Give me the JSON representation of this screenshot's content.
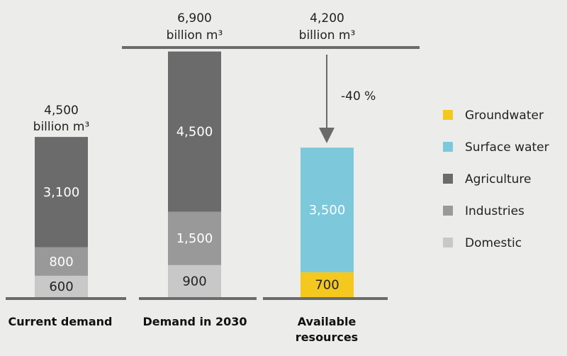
{
  "chart_data": {
    "type": "bar",
    "stacked": true,
    "categories": [
      [
        "Current demand"
      ],
      [
        "Demand in 2030"
      ],
      [
        "Available",
        "resources"
      ]
    ],
    "totals": [
      [
        "4,500",
        "billion m³"
      ],
      [
        "6,900",
        "billion m³"
      ],
      [
        "4,200",
        "billion m³"
      ]
    ],
    "segments": [
      [
        {
          "series": "Domestic",
          "value": 600,
          "label": "600"
        },
        {
          "series": "Industries",
          "value": 800,
          "label": "800"
        },
        {
          "series": "Agriculture",
          "value": 3100,
          "label": "3,100"
        }
      ],
      [
        {
          "series": "Domestic",
          "value": 900,
          "label": "900"
        },
        {
          "series": "Industries",
          "value": 1500,
          "label": "1,500"
        },
        {
          "series": "Agriculture",
          "value": 4500,
          "label": "4,500"
        }
      ],
      [
        {
          "series": "Groundwater",
          "value": 700,
          "label": "700"
        },
        {
          "series": "Surface water",
          "value": 3500,
          "label": "3,500"
        }
      ]
    ],
    "reduction_label": "-40 %",
    "legend": [
      {
        "name": "Groundwater",
        "color": "#f4c81f"
      },
      {
        "name": "Surface water",
        "color": "#7ec8dc"
      },
      {
        "name": "Agriculture",
        "color": "#6b6b6b"
      },
      {
        "name": "Industries",
        "color": "#999999"
      },
      {
        "name": "Domestic",
        "color": "#c8c8c8"
      }
    ],
    "legend_position": "right",
    "axis_color": "#6b6b6b",
    "grid": false
  }
}
